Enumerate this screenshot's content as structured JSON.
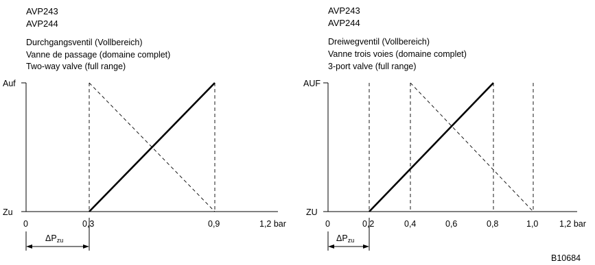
{
  "left": {
    "models": [
      "AVP243",
      "AVP244"
    ],
    "titles": [
      "Durchgangsventil (Vollbereich)",
      "Vanne de passage (domaine complet)",
      "Two-way valve (full range)"
    ],
    "y_top_label": "Auf",
    "y_bottom_label": "Zu",
    "x_ticks": [
      "0",
      "0,3",
      "0,9",
      "1,2 bar"
    ],
    "delta_label": "ΔP",
    "delta_sub": "zu",
    "chart_data": {
      "type": "line",
      "xlim": [
        0,
        1.2
      ],
      "ylim": [
        0,
        1
      ],
      "x_unit": "bar",
      "series": [
        {
          "style": "solid-thick",
          "points": [
            [
              0.3,
              0
            ],
            [
              0.9,
              1
            ]
          ]
        },
        {
          "style": "dashed",
          "points": [
            [
              0.3,
              1
            ],
            [
              0.9,
              0
            ]
          ]
        }
      ],
      "vertical_dashed_lines": [
        0.3,
        0.9
      ],
      "delta_range": [
        0,
        0.3
      ]
    }
  },
  "right": {
    "models": [
      "AVP243",
      "AVP244"
    ],
    "titles": [
      "Dreiwegventil (Vollbereich)",
      "Vanne trois voies (domaine complet)",
      "3-port valve (full range)"
    ],
    "y_top_label": "AUF",
    "y_bottom_label": "ZU",
    "x_ticks": [
      "0",
      "0,2",
      "0,4",
      "0,6",
      "0,8",
      "1,0",
      "1,2 bar"
    ],
    "delta_label": "ΔP",
    "delta_sub": "zu",
    "chart_data": {
      "type": "line",
      "xlim": [
        0,
        1.2
      ],
      "ylim": [
        0,
        1
      ],
      "x_unit": "bar",
      "series": [
        {
          "style": "solid-thick",
          "points": [
            [
              0.2,
              0
            ],
            [
              0.8,
              1
            ]
          ]
        },
        {
          "style": "dashed",
          "points": [
            [
              0.4,
              1
            ],
            [
              1.0,
              0
            ]
          ]
        }
      ],
      "vertical_dashed_lines": [
        0.2,
        0.4,
        0.8,
        1.0
      ],
      "delta_range": [
        0,
        0.2
      ]
    }
  },
  "figure_code": "B10684"
}
